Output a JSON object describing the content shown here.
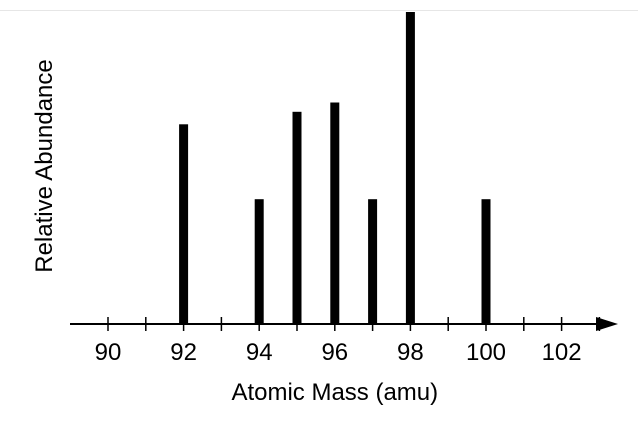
{
  "chart_data": {
    "type": "bar",
    "title": "",
    "xlabel": "Atomic Mass (amu)",
    "ylabel": "Relative Abundance",
    "x_ticks": [
      90,
      91,
      92,
      93,
      94,
      95,
      96,
      97,
      98,
      99,
      100,
      101,
      102,
      103
    ],
    "x_tick_labels": [
      "90",
      "92",
      "94",
      "96",
      "98",
      "100",
      "102"
    ],
    "xlim": [
      89,
      104
    ],
    "ylim": [
      0,
      1.0
    ],
    "bars": [
      {
        "x": 92,
        "value": 0.64
      },
      {
        "x": 94,
        "value": 0.4
      },
      {
        "x": 95,
        "value": 0.68
      },
      {
        "x": 96,
        "value": 0.71
      },
      {
        "x": 97,
        "value": 0.4
      },
      {
        "x": 98,
        "value": 1.0
      },
      {
        "x": 100,
        "value": 0.4
      }
    ],
    "grid": false,
    "bar_color": "#000000"
  }
}
